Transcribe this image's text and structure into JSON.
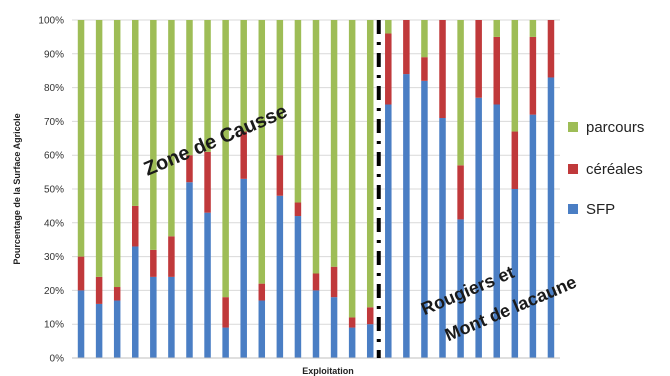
{
  "chart_data": {
    "type": "bar",
    "stacked": true,
    "normalized_percent": true,
    "title": "",
    "xlabel": "Exploitation",
    "ylabel": "Pourcentage de la Surface Agricole",
    "ylim": [
      0,
      100
    ],
    "yticks": [
      "0%",
      "10%",
      "20%",
      "30%",
      "40%",
      "50%",
      "60%",
      "70%",
      "80%",
      "90%",
      "100%"
    ],
    "grid": true,
    "legend_position": "right",
    "divider_after_bar": 17,
    "series": [
      {
        "name": "SFP",
        "color": "#4a7ec4",
        "values": [
          20,
          16,
          17,
          33,
          24,
          24,
          52,
          43,
          9,
          53,
          17,
          48,
          42,
          20,
          18,
          9,
          10,
          75,
          84,
          82,
          71,
          41,
          77,
          75,
          50,
          72,
          83
        ]
      },
      {
        "name": "céréales",
        "color": "#c0393b",
        "values": [
          10,
          8,
          4,
          12,
          8,
          12,
          8,
          18,
          9,
          14,
          5,
          12,
          4,
          5,
          9,
          3,
          5,
          21,
          16,
          7,
          29,
          16,
          23,
          20,
          17,
          23,
          17
        ]
      },
      {
        "name": "parcours",
        "color": "#9ebd56",
        "values": [
          70,
          76,
          79,
          55,
          68,
          64,
          40,
          39,
          82,
          33,
          78,
          40,
          54,
          75,
          73,
          88,
          85,
          4,
          0,
          11,
          0,
          43,
          0,
          5,
          33,
          5,
          0
        ]
      }
    ],
    "legend_order": [
      "parcours",
      "céréales",
      "SFP"
    ],
    "annotations": [
      {
        "text": "Zone de Causse",
        "region": "left"
      },
      {
        "text": "Rougiers et",
        "region": "right"
      },
      {
        "text": "Mont de lacaune",
        "region": "right"
      }
    ]
  }
}
